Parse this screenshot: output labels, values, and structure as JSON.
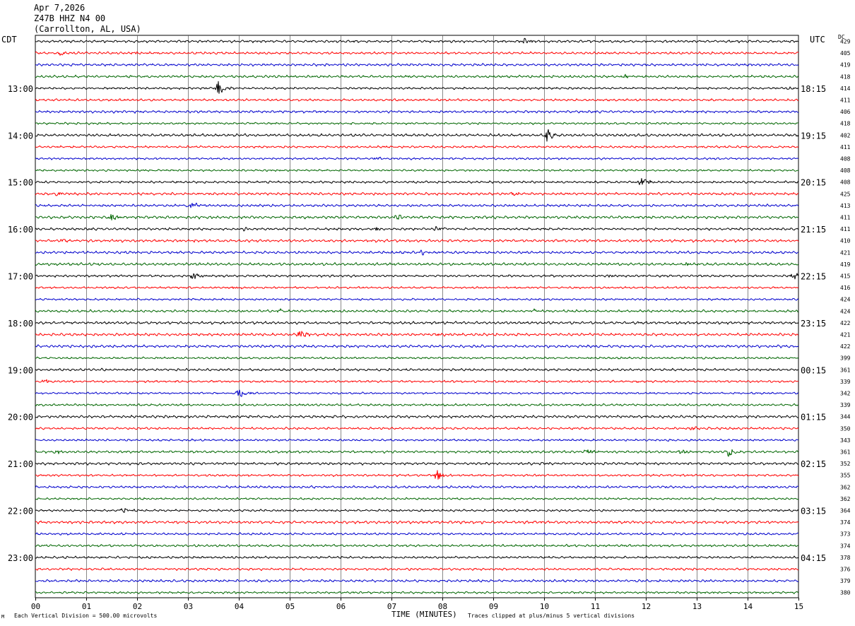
{
  "header": {
    "date": "Apr 7,2026",
    "station": "Z47B HHZ N4 00",
    "location": "(Carrollton, AL, USA)"
  },
  "left_axis_label": "CDT",
  "right_axis_label": "UTC",
  "dc_label": "DC",
  "footer": {
    "scale_note": "Each Vertical Division =  500.00 microvolts",
    "clip_note": "Traces clipped at plus/minus 5 vertical divisions",
    "corner_mark": "M"
  },
  "chart_data": {
    "type": "line",
    "title": "",
    "xlabel": "TIME (MINUTES)",
    "ylabel": "",
    "xlim": [
      0,
      15
    ],
    "x_ticks": [
      "00",
      "01",
      "02",
      "03",
      "04",
      "05",
      "06",
      "07",
      "08",
      "09",
      "10",
      "11",
      "12",
      "13",
      "14",
      "15"
    ],
    "rows_per_hour": 4,
    "trace_color_cycle": [
      "#000000",
      "#ff0000",
      "#0000cc",
      "#006600"
    ],
    "left_time_labels": [
      {
        "row": 4,
        "label": "13:00"
      },
      {
        "row": 8,
        "label": "14:00"
      },
      {
        "row": 12,
        "label": "15:00"
      },
      {
        "row": 16,
        "label": "16:00"
      },
      {
        "row": 20,
        "label": "17:00"
      },
      {
        "row": 24,
        "label": "18:00"
      },
      {
        "row": 28,
        "label": "19:00"
      },
      {
        "row": 32,
        "label": "20:00"
      },
      {
        "row": 36,
        "label": "21:00"
      },
      {
        "row": 40,
        "label": "22:00"
      },
      {
        "row": 44,
        "label": "23:00"
      }
    ],
    "right_time_labels": [
      {
        "row": 4,
        "label": "18:15"
      },
      {
        "row": 8,
        "label": "19:15"
      },
      {
        "row": 12,
        "label": "20:15"
      },
      {
        "row": 16,
        "label": "21:15"
      },
      {
        "row": 20,
        "label": "22:15"
      },
      {
        "row": 24,
        "label": "23:15"
      },
      {
        "row": 28,
        "label": "00:15"
      },
      {
        "row": 32,
        "label": "01:15"
      },
      {
        "row": 36,
        "label": "02:15"
      },
      {
        "row": 40,
        "label": "03:15"
      },
      {
        "row": 44,
        "label": "04:15"
      }
    ],
    "dc_offsets": [
      "429",
      "405",
      "419",
      "418",
      "414",
      "411",
      "406",
      "418",
      "402",
      "411",
      "408",
      "408",
      "408",
      "425",
      "413",
      "411",
      "411",
      "410",
      "421",
      "419",
      "415",
      "416",
      "424",
      "424",
      "422",
      "421",
      "422",
      "399",
      "361",
      "339",
      "342",
      "339",
      "344",
      "350",
      "343",
      "361",
      "352",
      "355",
      "362",
      "362",
      "364",
      "374",
      "373",
      "374",
      "378",
      "376",
      "379",
      "380"
    ],
    "events": [
      {
        "row": 0,
        "t": 9.6,
        "amp": 2.5
      },
      {
        "row": 1,
        "t": 0.5,
        "amp": 1.8
      },
      {
        "row": 1,
        "t": 1.9,
        "amp": 2.0
      },
      {
        "row": 3,
        "t": 11.6,
        "amp": 1.5
      },
      {
        "row": 4,
        "t": 3.6,
        "amp": 6.0
      },
      {
        "row": 4,
        "t": 14.8,
        "amp": 1.5
      },
      {
        "row": 8,
        "t": 10.05,
        "amp": 7.0
      },
      {
        "row": 10,
        "t": 6.7,
        "amp": 1.5
      },
      {
        "row": 12,
        "t": 11.9,
        "amp": 4.5
      },
      {
        "row": 13,
        "t": 0.4,
        "amp": 2.5
      },
      {
        "row": 13,
        "t": 9.4,
        "amp": 2.0
      },
      {
        "row": 14,
        "t": 3.05,
        "amp": 3.5
      },
      {
        "row": 15,
        "t": 1.5,
        "amp": 3.5
      },
      {
        "row": 15,
        "t": 7.1,
        "amp": 2.8
      },
      {
        "row": 16,
        "t": 4.1,
        "amp": 1.5
      },
      {
        "row": 16,
        "t": 6.7,
        "amp": 1.5
      },
      {
        "row": 16,
        "t": 7.9,
        "amp": 2.5
      },
      {
        "row": 17,
        "t": 0.5,
        "amp": 2.0
      },
      {
        "row": 17,
        "t": 3.1,
        "amp": 1.2
      },
      {
        "row": 18,
        "t": 7.6,
        "amp": 2.5
      },
      {
        "row": 19,
        "t": 12.8,
        "amp": 1.2
      },
      {
        "row": 20,
        "t": 3.1,
        "amp": 4.0
      },
      {
        "row": 20,
        "t": 11.3,
        "amp": 1.2
      },
      {
        "row": 20,
        "t": 14.9,
        "amp": 3.5
      },
      {
        "row": 21,
        "t": 3.9,
        "amp": 1.2
      },
      {
        "row": 23,
        "t": 4.8,
        "amp": 1.5
      },
      {
        "row": 23,
        "t": 9.8,
        "amp": 1.2
      },
      {
        "row": 25,
        "t": 5.2,
        "amp": 3.5
      },
      {
        "row": 25,
        "t": 7.9,
        "amp": 1.5
      },
      {
        "row": 29,
        "t": 0.2,
        "amp": 1.8
      },
      {
        "row": 29,
        "t": 11.8,
        "amp": 1.2
      },
      {
        "row": 30,
        "t": 4.0,
        "amp": 4.5
      },
      {
        "row": 33,
        "t": 12.9,
        "amp": 2.0
      },
      {
        "row": 35,
        "t": 0.4,
        "amp": 2.0
      },
      {
        "row": 35,
        "t": 10.85,
        "amp": 3.5
      },
      {
        "row": 35,
        "t": 12.7,
        "amp": 2.0
      },
      {
        "row": 35,
        "t": 13.6,
        "amp": 5.0
      },
      {
        "row": 37,
        "t": 7.9,
        "amp": 4.5
      },
      {
        "row": 40,
        "t": 1.7,
        "amp": 2.0
      }
    ]
  }
}
